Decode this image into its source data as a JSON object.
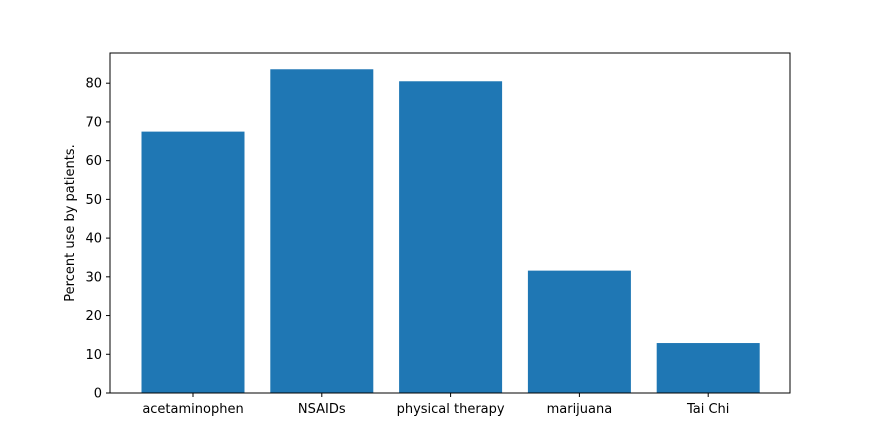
{
  "chart_data": {
    "type": "bar",
    "title": "",
    "xlabel": "",
    "ylabel": "Percent use by patients.",
    "categories": [
      "acetaminophen",
      "NSAIDs",
      "physical therapy",
      "marijuana",
      "Tai Chi"
    ],
    "values": [
      67.5,
      83.6,
      80.5,
      31.6,
      12.9
    ],
    "ylim": [
      0,
      87.8
    ],
    "yticks": [
      "0",
      "10",
      "20",
      "30",
      "40",
      "50",
      "60",
      "70",
      "80"
    ],
    "grid": false,
    "bar_color": "#1f77b4"
  }
}
